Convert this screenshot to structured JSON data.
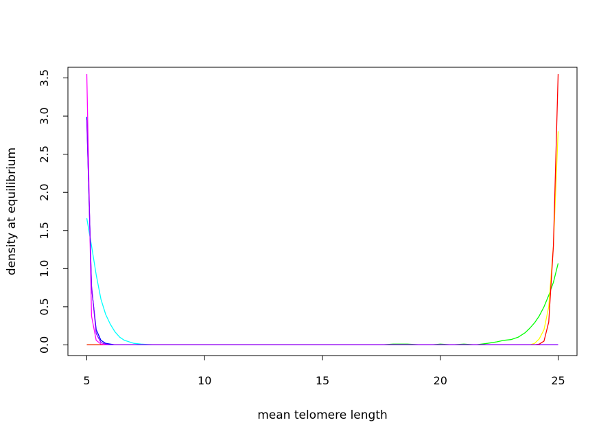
{
  "chart_data": {
    "type": "line",
    "title": "",
    "xlabel": "mean telomere length",
    "ylabel": "density at equilibrium",
    "xlim": [
      4.2,
      25.8
    ],
    "ylim": [
      -0.14,
      3.64
    ],
    "x_ticks": [
      5,
      10,
      15,
      20,
      25
    ],
    "y_ticks": [
      0.0,
      0.5,
      1.0,
      1.5,
      2.0,
      2.5,
      3.0,
      3.5
    ],
    "x_tick_labels": [
      "5",
      "10",
      "15",
      "20",
      "25"
    ],
    "y_tick_labels": [
      "0.0",
      "0.5",
      "1.0",
      "1.5",
      "2.0",
      "2.5",
      "3.0",
      "3.5"
    ],
    "grid": false,
    "legend": "none",
    "series": [
      {
        "color": "#00FFFF",
        "x": [
          5.0,
          5.2,
          5.4,
          5.6,
          5.8,
          6.0,
          6.2,
          6.4,
          6.6,
          6.8,
          7.0,
          7.3,
          7.6,
          8.0,
          9.0,
          25.0
        ],
        "y": [
          1.66,
          1.3,
          0.92,
          0.6,
          0.4,
          0.27,
          0.17,
          0.1,
          0.06,
          0.04,
          0.02,
          0.01,
          0.005,
          0.0,
          0.0,
          0.0
        ]
      },
      {
        "color": "#00FF00",
        "x": [
          5.0,
          5.6,
          6.0,
          17.5,
          18.0,
          18.6,
          19.2,
          19.6,
          20.0,
          20.5,
          21.0,
          21.5,
          22.0,
          22.4,
          22.7,
          23.0,
          23.3,
          23.6,
          23.8,
          24.0,
          24.2,
          24.4,
          24.6,
          24.8,
          25.0
        ],
        "y": [
          0.0,
          0.0,
          0.0,
          0.0,
          0.01,
          0.01,
          0.0,
          0.0,
          0.01,
          0.0,
          0.01,
          0.0,
          0.02,
          0.04,
          0.06,
          0.07,
          0.1,
          0.16,
          0.22,
          0.29,
          0.38,
          0.5,
          0.65,
          0.82,
          1.07
        ]
      },
      {
        "color": "#FFFF00",
        "x": [
          5.0,
          23.8,
          24.0,
          24.2,
          24.4,
          24.6,
          24.8,
          25.0
        ],
        "y": [
          0.0,
          0.0,
          0.02,
          0.08,
          0.2,
          0.5,
          1.3,
          2.8
        ]
      },
      {
        "color": "#FF0000",
        "x": [
          5.0,
          24.0,
          24.2,
          24.4,
          24.6,
          24.8,
          25.0
        ],
        "y": [
          0.0,
          0.0,
          0.01,
          0.05,
          0.3,
          1.3,
          3.55
        ]
      },
      {
        "color": "#0000FF",
        "x": [
          5.0,
          5.2,
          5.4,
          5.6,
          5.8,
          6.0,
          6.2,
          6.5,
          25.0
        ],
        "y": [
          2.99,
          0.75,
          0.2,
          0.06,
          0.02,
          0.01,
          0.0,
          0.0,
          0.0
        ]
      },
      {
        "color": "#FF00FF",
        "x": [
          5.0,
          5.2,
          5.4,
          5.6,
          5.8,
          6.0,
          6.3,
          25.0
        ],
        "y": [
          3.55,
          0.38,
          0.06,
          0.01,
          0.0,
          0.0,
          0.0,
          0.0
        ]
      },
      {
        "color": "#8B00FF",
        "x": [
          5.0,
          5.2,
          5.4,
          5.6,
          5.8,
          6.0,
          6.5,
          25.0
        ],
        "y": [
          2.95,
          0.78,
          0.15,
          0.03,
          0.01,
          0.0,
          0.0,
          0.0
        ]
      }
    ]
  }
}
